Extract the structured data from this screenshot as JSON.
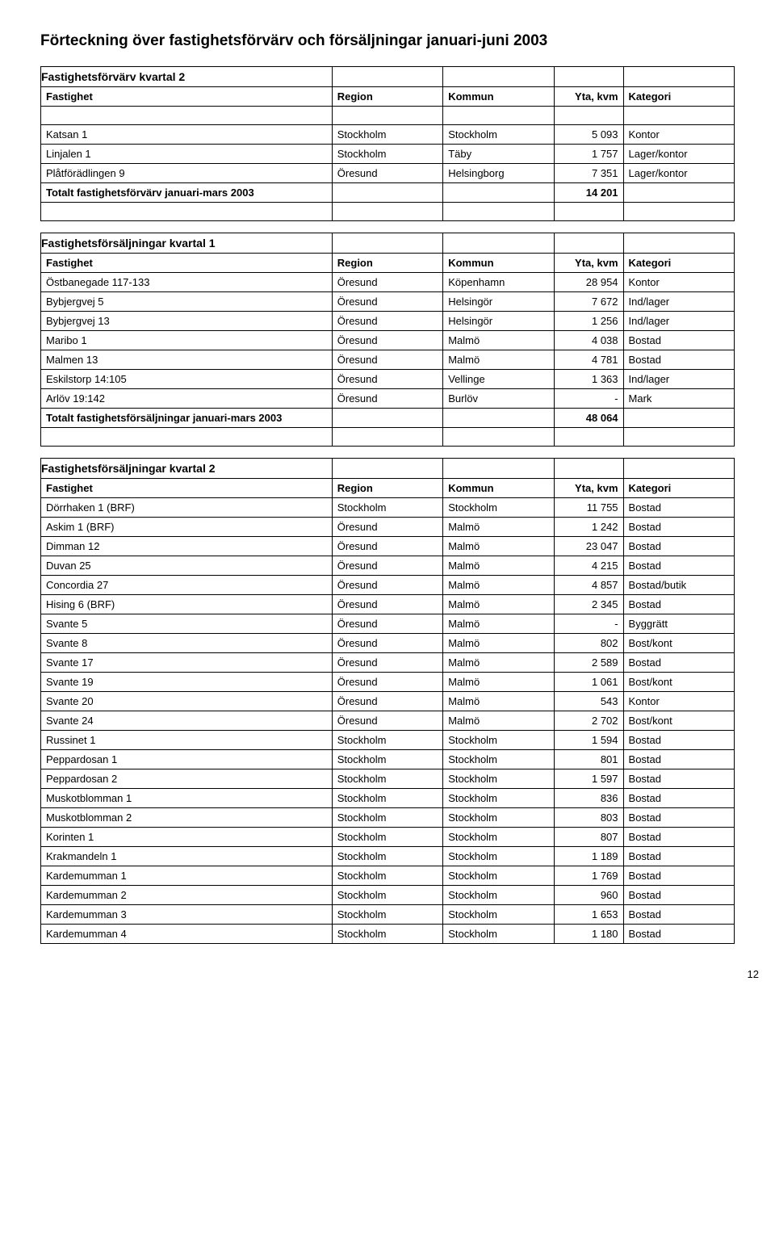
{
  "doc_title": "Förteckning över fastighetsförvärv och försäljningar januari-juni 2003",
  "col_headers": {
    "fastighet": "Fastighet",
    "region": "Region",
    "kommun": "Kommun",
    "yta": "Yta, kvm",
    "kategori": "Kategori"
  },
  "acq2": {
    "title": "Fastighetsförvärv kvartal 2",
    "rows": [
      {
        "f": "Katsan 1",
        "r": "Stockholm",
        "k": "Stockholm",
        "y": "5 093",
        "c": "Kontor"
      },
      {
        "f": "Linjalen 1",
        "r": "Stockholm",
        "k": "Täby",
        "y": "1 757",
        "c": "Lager/kontor"
      },
      {
        "f": "Plåtförädlingen 9",
        "r": "Öresund",
        "k": "Helsingborg",
        "y": "7 351",
        "c": "Lager/kontor"
      }
    ],
    "total_label": "Totalt fastighetsförvärv januari-mars 2003",
    "total_value": "14 201"
  },
  "sale1": {
    "title": "Fastighetsförsäljningar kvartal 1",
    "rows": [
      {
        "f": "Östbanegade 117-133",
        "r": "Öresund",
        "k": "Köpenhamn",
        "y": "28 954",
        "c": "Kontor"
      },
      {
        "f": "Bybjergvej 5",
        "r": "Öresund",
        "k": "Helsingör",
        "y": "7 672",
        "c": "Ind/lager"
      },
      {
        "f": "Bybjergvej 13",
        "r": "Öresund",
        "k": "Helsingör",
        "y": "1 256",
        "c": "Ind/lager"
      },
      {
        "f": "Maribo 1",
        "r": "Öresund",
        "k": "Malmö",
        "y": "4 038",
        "c": "Bostad"
      },
      {
        "f": "Malmen 13",
        "r": "Öresund",
        "k": "Malmö",
        "y": "4 781",
        "c": "Bostad"
      },
      {
        "f": "Eskilstorp 14:105",
        "r": "Öresund",
        "k": "Vellinge",
        "y": "1 363",
        "c": "Ind/lager"
      },
      {
        "f": "Arlöv 19:142",
        "r": "Öresund",
        "k": "Burlöv",
        "y": "-",
        "c": "Mark"
      }
    ],
    "total_label": "Totalt fastighetsförsäljningar januari-mars 2003",
    "total_value": "48 064"
  },
  "sale2": {
    "title": "Fastighetsförsäljningar kvartal 2",
    "rows": [
      {
        "f": "Dörrhaken 1 (BRF)",
        "r": "Stockholm",
        "k": "Stockholm",
        "y": "11 755",
        "c": "Bostad"
      },
      {
        "f": "Askim 1 (BRF)",
        "r": "Öresund",
        "k": "Malmö",
        "y": "1 242",
        "c": "Bostad"
      },
      {
        "f": "Dimman 12",
        "r": "Öresund",
        "k": "Malmö",
        "y": "23 047",
        "c": "Bostad"
      },
      {
        "f": "Duvan 25",
        "r": "Öresund",
        "k": "Malmö",
        "y": "4 215",
        "c": "Bostad"
      },
      {
        "f": "Concordia 27",
        "r": "Öresund",
        "k": "Malmö",
        "y": "4 857",
        "c": "Bostad/butik"
      },
      {
        "f": "Hising 6 (BRF)",
        "r": "Öresund",
        "k": "Malmö",
        "y": "2 345",
        "c": "Bostad"
      },
      {
        "f": "Svante 5",
        "r": "Öresund",
        "k": "Malmö",
        "y": "-",
        "c": "Byggrätt"
      },
      {
        "f": "Svante 8",
        "r": "Öresund",
        "k": "Malmö",
        "y": "802",
        "c": "Bost/kont"
      },
      {
        "f": "Svante 17",
        "r": "Öresund",
        "k": "Malmö",
        "y": "2 589",
        "c": "Bostad"
      },
      {
        "f": "Svante 19",
        "r": "Öresund",
        "k": "Malmö",
        "y": "1 061",
        "c": "Bost/kont"
      },
      {
        "f": "Svante 20",
        "r": "Öresund",
        "k": "Malmö",
        "y": "543",
        "c": "Kontor"
      },
      {
        "f": "Svante 24",
        "r": "Öresund",
        "k": "Malmö",
        "y": "2 702",
        "c": "Bost/kont"
      },
      {
        "f": "Russinet 1",
        "r": "Stockholm",
        "k": "Stockholm",
        "y": "1 594",
        "c": "Bostad"
      },
      {
        "f": "Peppardosan 1",
        "r": "Stockholm",
        "k": "Stockholm",
        "y": "801",
        "c": "Bostad"
      },
      {
        "f": "Peppardosan 2",
        "r": "Stockholm",
        "k": "Stockholm",
        "y": "1 597",
        "c": "Bostad"
      },
      {
        "f": "Muskotblomman 1",
        "r": "Stockholm",
        "k": "Stockholm",
        "y": "836",
        "c": "Bostad"
      },
      {
        "f": "Muskotblomman 2",
        "r": "Stockholm",
        "k": "Stockholm",
        "y": "803",
        "c": "Bostad"
      },
      {
        "f": "Korinten 1",
        "r": "Stockholm",
        "k": "Stockholm",
        "y": "807",
        "c": "Bostad"
      },
      {
        "f": "Krakmandeln 1",
        "r": "Stockholm",
        "k": "Stockholm",
        "y": "1 189",
        "c": "Bostad"
      },
      {
        "f": "Kardemumman 1",
        "r": "Stockholm",
        "k": "Stockholm",
        "y": "1 769",
        "c": "Bostad"
      },
      {
        "f": "Kardemumman 2",
        "r": "Stockholm",
        "k": "Stockholm",
        "y": "960",
        "c": "Bostad"
      },
      {
        "f": "Kardemumman 3",
        "r": "Stockholm",
        "k": "Stockholm",
        "y": "1 653",
        "c": "Bostad"
      },
      {
        "f": "Kardemumman 4",
        "r": "Stockholm",
        "k": "Stockholm",
        "y": "1 180",
        "c": "Bostad"
      }
    ]
  },
  "page_number": "12"
}
